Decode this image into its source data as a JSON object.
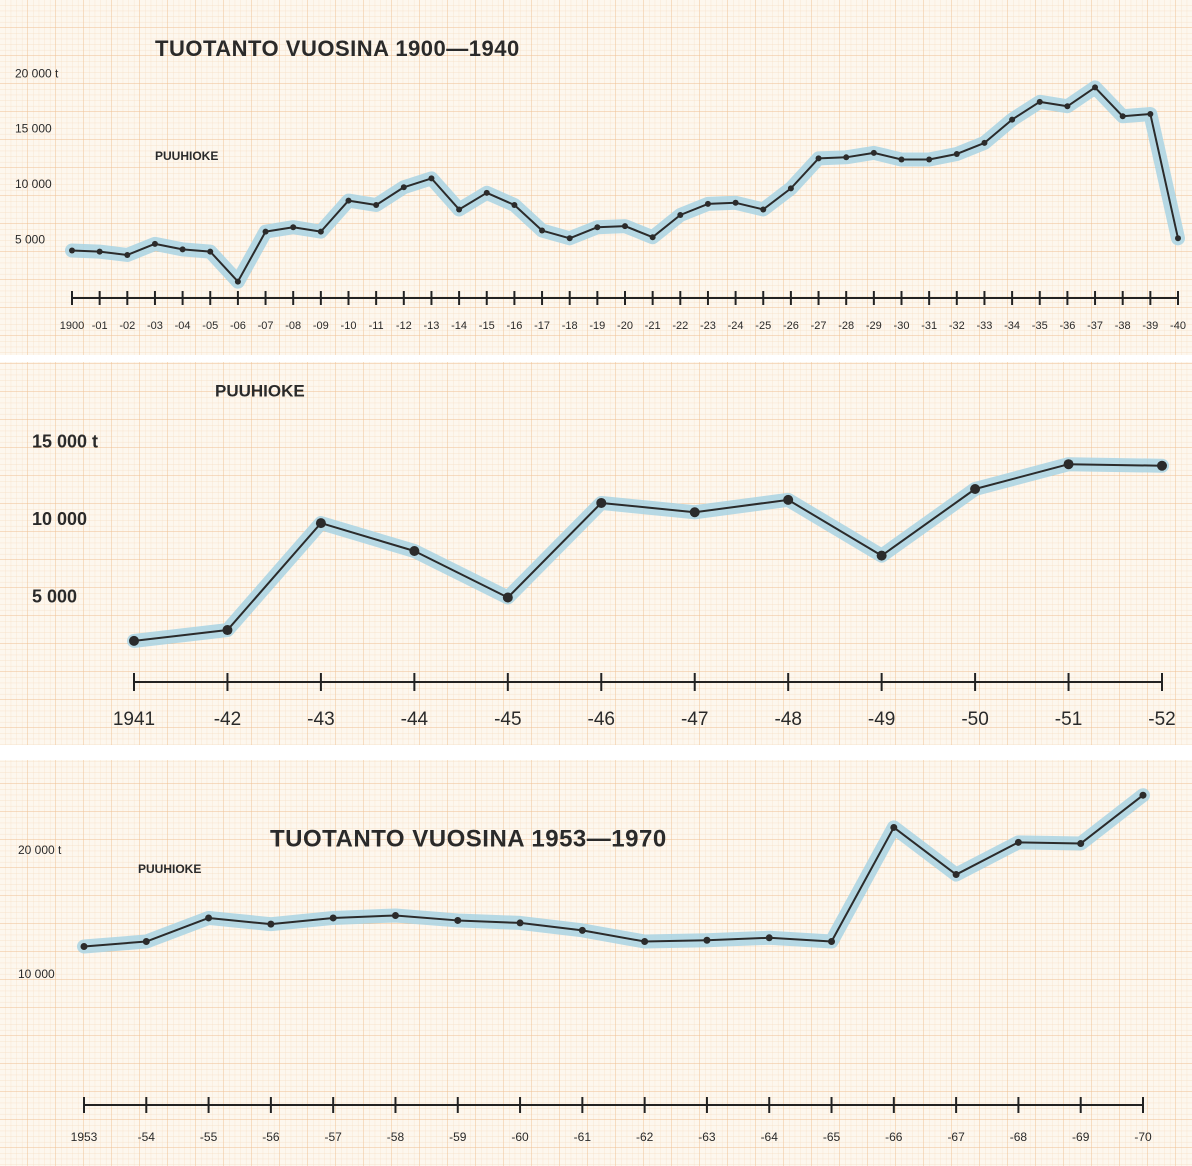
{
  "chart_data": [
    {
      "type": "line",
      "title": "TUOTANTO VUOSINA 1900—1940",
      "categories": [
        "1900",
        "-01",
        "-02",
        "-03",
        "-04",
        "-05",
        "-06",
        "-07",
        "-08",
        "-09",
        "-10",
        "-11",
        "-12",
        "-13",
        "-14",
        "-15",
        "-16",
        "-17",
        "-18",
        "-19",
        "-20",
        "-21",
        "-22",
        "-23",
        "-24",
        "-25",
        "-26",
        "-27",
        "-28",
        "-29",
        "-30",
        "-31",
        "-32",
        "-33",
        "-34",
        "-35",
        "-36",
        "-37",
        "-38",
        "-39",
        "-40"
      ],
      "series": [
        {
          "name": "PUUHIOKE",
          "color": "#2b2b2b",
          "values": [
            4100,
            4000,
            3700,
            4700,
            4200,
            4000,
            1300,
            5800,
            6200,
            5800,
            8600,
            8200,
            9800,
            10600,
            7800,
            9300,
            8200,
            5900,
            5200,
            6200,
            6300,
            5300,
            7300,
            8300,
            8400,
            7800,
            9700,
            12400,
            12500,
            12900,
            12300,
            12300,
            12800,
            13800,
            15900,
            17500,
            17100,
            18800,
            16200,
            16400,
            5200
          ]
        }
      ],
      "ylim": [
        0,
        21000
      ],
      "yticks": [
        {
          "value": 5000,
          "label": "5 000"
        },
        {
          "value": 10000,
          "label": "10 000"
        },
        {
          "value": 15000,
          "label": "15 000"
        },
        {
          "value": 20000,
          "label": "20 000 t"
        }
      ]
    },
    {
      "type": "line",
      "categories": [
        "1941",
        "-42",
        "-43",
        "-44",
        "-45",
        "-46",
        "-47",
        "-48",
        "-49",
        "-50",
        "-51",
        "-52"
      ],
      "series": [
        {
          "name": "PUUHIOKE",
          "color": "#2b2b2b",
          "values": [
            2200,
            2900,
            9800,
            8000,
            5000,
            11100,
            10500,
            11300,
            7700,
            12000,
            13600,
            13500
          ]
        }
      ],
      "ylim": [
        0,
        16000
      ],
      "yticks": [
        {
          "value": 5000,
          "label": "5 000"
        },
        {
          "value": 10000,
          "label": "10 000"
        },
        {
          "value": 15000,
          "label": "15 000 t"
        }
      ]
    },
    {
      "type": "line",
      "title": "TUOTANTO VUOSINA 1953—1970",
      "categories": [
        "1953",
        "-54",
        "-55",
        "-56",
        "-57",
        "-58",
        "-59",
        "-60",
        "-61",
        "-62",
        "-63",
        "-64",
        "-65",
        "-66",
        "-67",
        "-68",
        "-69",
        "-70"
      ],
      "series": [
        {
          "name": "PUUHIOKE",
          "color": "#2b2b2b",
          "values": [
            12300,
            12700,
            14600,
            14100,
            14600,
            14800,
            14400,
            14200,
            13600,
            12700,
            12800,
            13000,
            12700,
            21900,
            18100,
            20700,
            20600,
            24500
          ]
        }
      ],
      "ylim": [
        0,
        25000
      ],
      "yticks": [
        {
          "value": 10000,
          "label": "10 000"
        },
        {
          "value": 20000,
          "label": "20 000 t"
        }
      ]
    }
  ]
}
